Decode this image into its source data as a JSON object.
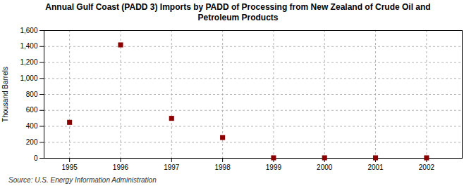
{
  "chart_data": {
    "type": "scatter",
    "title": "Annual Gulf Coast (PADD 3) Imports by PADD of Processing from New Zealand of Crude Oil and\nPetroleum Products",
    "ylabel": "Thousand Barrels",
    "annotation": "Source: U.S. Energy Information Administration",
    "x": [
      1995,
      1996,
      1997,
      1998,
      1999,
      2000,
      2001,
      2002
    ],
    "values": [
      450,
      1420,
      500,
      260,
      5,
      5,
      5,
      5
    ],
    "color": "#8B0000",
    "marker": "square",
    "xlim": [
      1994.5,
      2002.7
    ],
    "ylim": [
      0,
      1600
    ],
    "xticks": [
      1995,
      1996,
      1997,
      1998,
      1999,
      2000,
      2001,
      2002
    ],
    "yticks": [
      0,
      200,
      400,
      600,
      800,
      {
        "value": 1000,
        "label": "1,000"
      },
      {
        "value": 1200,
        "label": "1,200"
      },
      {
        "value": 1400,
        "label": "1,400"
      },
      {
        "value": 1600,
        "label": "1,600"
      }
    ],
    "grid": true
  }
}
